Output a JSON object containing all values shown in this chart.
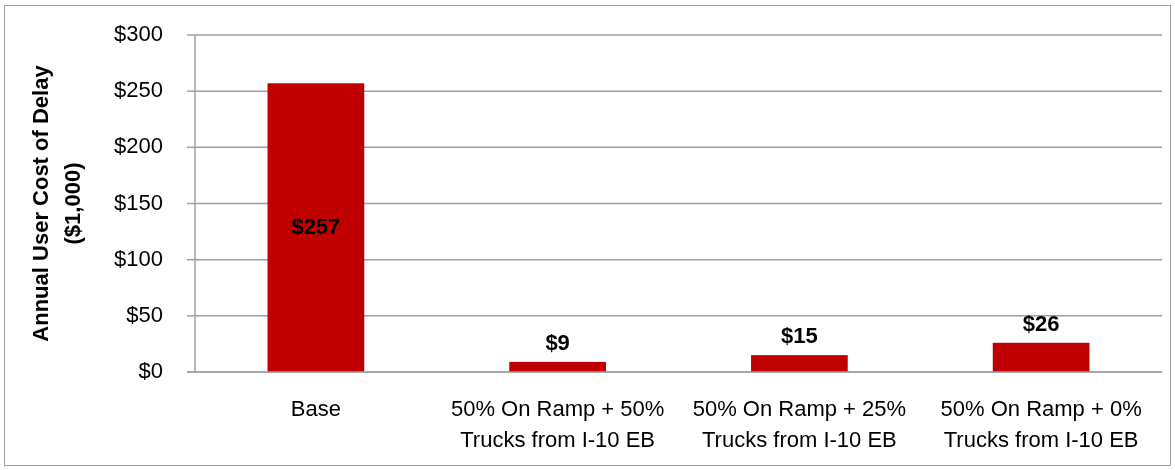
{
  "chart_data": {
    "type": "bar",
    "ylabel": "Annual User Cost of Delay ($1,000)",
    "categories": [
      "Base",
      "50% On Ramp + 50% Trucks from I-10 EB",
      "50% On Ramp + 25% Trucks from I-10 EB",
      "50% On Ramp + 0% Trucks from I-10 EB"
    ],
    "values": [
      257,
      9,
      15,
      26
    ],
    "value_labels": [
      "$257",
      "$9",
      "$15",
      "$26"
    ],
    "color": "#c00000",
    "ylim": [
      0,
      300
    ],
    "yticks": [
      {
        "value": 0,
        "label": "$0"
      },
      {
        "value": 50,
        "label": "$50"
      },
      {
        "value": 100,
        "label": "$100"
      },
      {
        "value": 150,
        "label": "$150"
      },
      {
        "value": 200,
        "label": "$200"
      },
      {
        "value": 250,
        "label": "$250"
      },
      {
        "value": 300,
        "label": "$300"
      }
    ],
    "grid": "y"
  }
}
